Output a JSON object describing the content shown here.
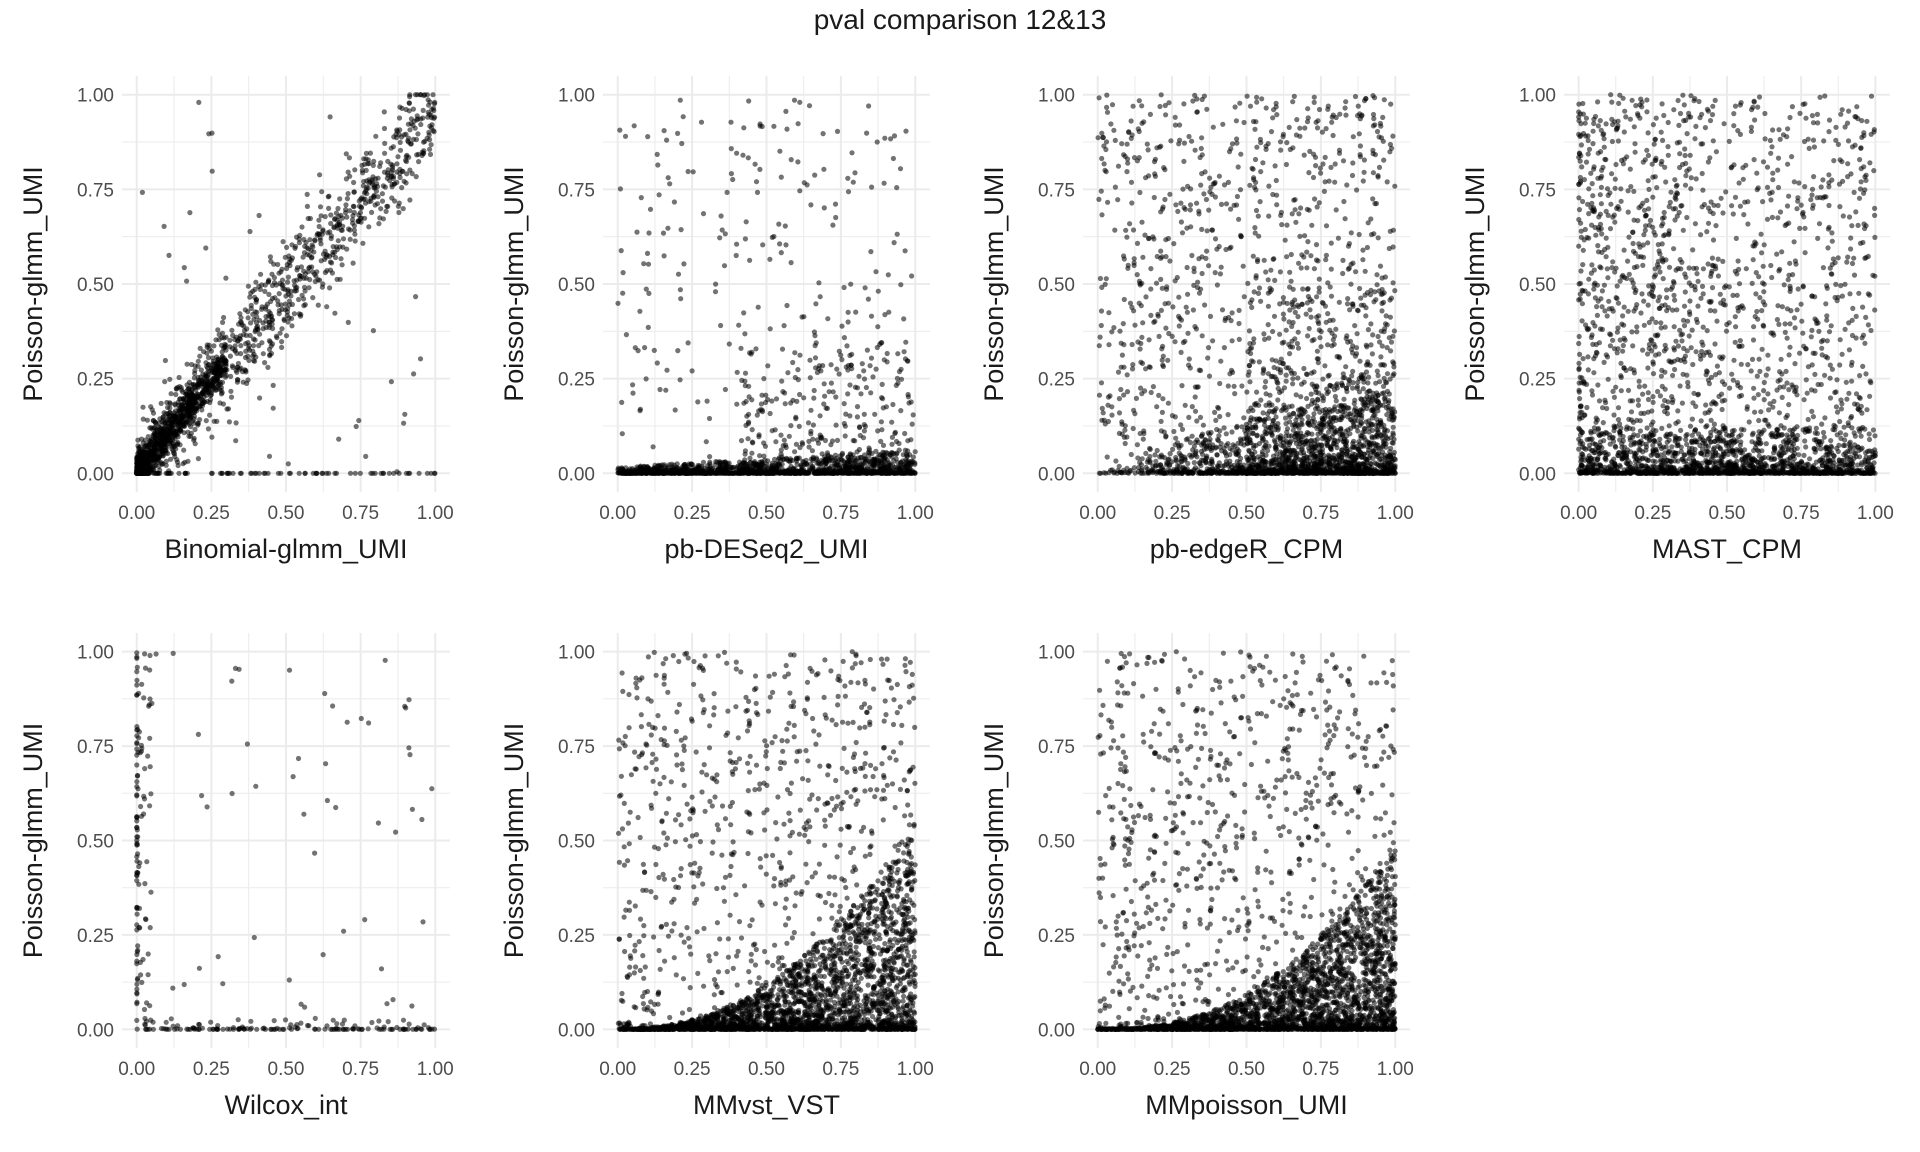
{
  "figure": {
    "title": "pval comparison 12&13"
  },
  "style": {
    "point_color": "#000000",
    "point_opacity": 0.55,
    "grid_color": "#ebebeb",
    "tick_label_color": "#4d4d4d",
    "axis_title_color": "#1a1a1a"
  },
  "chart_data": [
    {
      "type": "scatter",
      "title": "",
      "xlabel": "Binomial-glmm_UMI",
      "ylabel": "Poisson-glmm_UMI",
      "xlim": [
        0,
        1
      ],
      "ylim": [
        0,
        1
      ],
      "ticks": [
        0,
        0.25,
        0.5,
        0.75,
        1
      ],
      "tick_labels": [
        "0.00",
        "0.25",
        "0.50",
        "0.75",
        "1.00"
      ],
      "grid": true,
      "pattern": "diagonal correlation, dense cluster near origin",
      "n_points": 1900
    },
    {
      "type": "scatter",
      "title": "",
      "xlabel": "pb-DESeq2_UMI",
      "ylabel": "Poisson-glmm_UMI",
      "xlim": [
        0,
        1
      ],
      "ylim": [
        0,
        1
      ],
      "ticks": [
        0,
        0.25,
        0.5,
        0.75,
        1
      ],
      "tick_labels": [
        "0.00",
        "0.25",
        "0.50",
        "0.75",
        "1.00"
      ],
      "grid": true,
      "pattern": "most points near y=0, sparse scatter above",
      "n_points": 1800
    },
    {
      "type": "scatter",
      "title": "",
      "xlabel": "pb-edgeR_CPM",
      "ylabel": "Poisson-glmm_UMI",
      "xlim": [
        0,
        1
      ],
      "ylim": [
        0,
        1
      ],
      "ticks": [
        0,
        0.25,
        0.5,
        0.75,
        1
      ],
      "tick_labels": [
        "0.00",
        "0.25",
        "0.50",
        "0.75",
        "1.00"
      ],
      "grid": true,
      "pattern": "broad scatter with dense band near y=0 increasing with x",
      "n_points": 2800
    },
    {
      "type": "scatter",
      "title": "",
      "xlabel": "MAST_CPM",
      "ylabel": "Poisson-glmm_UMI",
      "xlim": [
        0,
        1
      ],
      "ylim": [
        0,
        1
      ],
      "ticks": [
        0,
        0.25,
        0.5,
        0.75,
        1
      ],
      "tick_labels": [
        "0.00",
        "0.25",
        "0.50",
        "0.75",
        "1.00"
      ],
      "grid": true,
      "pattern": "uniform scatter, dense band near y=0",
      "n_points": 2800
    },
    {
      "type": "scatter",
      "title": "",
      "xlabel": "Wilcox_int",
      "ylabel": "Poisson-glmm_UMI",
      "xlim": [
        0,
        1
      ],
      "ylim": [
        0,
        1
      ],
      "ticks": [
        0,
        0.25,
        0.5,
        0.75,
        1
      ],
      "tick_labels": [
        "0.00",
        "0.25",
        "0.50",
        "0.75",
        "1.00"
      ],
      "grid": true,
      "pattern": "sparse, points concentrated at x near 0 and y=0",
      "n_points": 320
    },
    {
      "type": "scatter",
      "title": "",
      "xlabel": "MMvst_VST",
      "ylabel": "Poisson-glmm_UMI",
      "xlim": [
        0,
        1
      ],
      "ylim": [
        0,
        1
      ],
      "ticks": [
        0,
        0.25,
        0.5,
        0.75,
        1
      ],
      "tick_labels": [
        "0.00",
        "0.25",
        "0.50",
        "0.75",
        "1.00"
      ],
      "grid": true,
      "pattern": "dense triangular wedge along bottom-right, scatter above",
      "n_points": 3300
    },
    {
      "type": "scatter",
      "title": "",
      "xlabel": "MMpoisson_UMI",
      "ylabel": "Poisson-glmm_UMI",
      "xlim": [
        0,
        1
      ],
      "ylim": [
        0,
        1
      ],
      "ticks": [
        0,
        0.25,
        0.5,
        0.75,
        1
      ],
      "tick_labels": [
        "0.00",
        "0.25",
        "0.50",
        "0.75",
        "1.00"
      ],
      "grid": true,
      "pattern": "dense triangular wedge along bottom-right, scatter above",
      "n_points": 3300
    }
  ]
}
